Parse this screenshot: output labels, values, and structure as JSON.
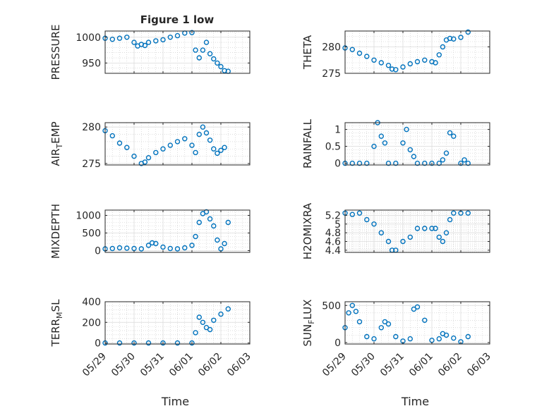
{
  "figure": {
    "title": "Figure 1 low"
  },
  "style": {
    "marker_color": "#0072bd",
    "axis_color": "#262626",
    "grid_color": "#c8c8c8"
  },
  "chart_data": [
    {
      "type": "scatter",
      "ylabel": "PRESSURE",
      "ylabel_sub": "",
      "ylim": [
        930,
        1012
      ],
      "yticks": [
        950,
        1000
      ],
      "x": [
        "05/29 00:00",
        "05/29 06:00",
        "05/29 12:00",
        "05/29 18:00",
        "05/30 00:00",
        "05/30 03:00",
        "05/30 06:00",
        "05/30 09:00",
        "05/30 12:00",
        "05/30 18:00",
        "05/31 00:00",
        "05/31 06:00",
        "05/31 12:00",
        "05/31 18:00",
        "06/01 00:00",
        "06/01 03:00",
        "06/01 06:00",
        "06/01 09:00",
        "06/01 12:00",
        "06/01 15:00",
        "06/01 18:00",
        "06/01 21:00",
        "06/02 00:00",
        "06/02 03:00",
        "06/02 06:00"
      ],
      "y": [
        998,
        996,
        998,
        1000,
        990,
        983,
        986,
        984,
        990,
        993,
        995,
        1000,
        1003,
        1008,
        1009,
        975,
        960,
        975,
        990,
        968,
        958,
        950,
        943,
        935,
        934
      ]
    },
    {
      "type": "scatter",
      "ylabel": "THETA",
      "ylabel_sub": "",
      "ylim": [
        275,
        283
      ],
      "yticks": [
        275,
        280
      ],
      "x": [
        "05/29 00:00",
        "05/29 06:00",
        "05/29 12:00",
        "05/29 18:00",
        "05/30 00:00",
        "05/30 06:00",
        "05/30 12:00",
        "05/30 15:00",
        "05/30 18:00",
        "05/31 00:00",
        "05/31 06:00",
        "05/31 12:00",
        "05/31 18:00",
        "06/01 00:00",
        "06/01 03:00",
        "06/01 06:00",
        "06/01 09:00",
        "06/01 12:00",
        "06/01 15:00",
        "06/01 18:00",
        "06/02 00:00",
        "06/02 06:00"
      ],
      "y": [
        279.8,
        279.5,
        278.8,
        278.2,
        277.5,
        277.0,
        276.5,
        275.8,
        275.7,
        276.2,
        276.8,
        277.2,
        277.5,
        277.2,
        277.0,
        278.5,
        280.0,
        281.3,
        281.6,
        281.5,
        281.8,
        282.8
      ]
    },
    {
      "type": "scatter",
      "ylabel": "AIR",
      "ylabel_sub": "T",
      "ylabel_rest": "EMP",
      "ylim": [
        274.8,
        280.6
      ],
      "yticks": [
        275,
        280
      ],
      "x": [
        "05/29 00:00",
        "05/29 06:00",
        "05/29 12:00",
        "05/29 18:00",
        "05/30 00:00",
        "05/30 06:00",
        "05/30 09:00",
        "05/30 12:00",
        "05/30 18:00",
        "05/31 00:00",
        "05/31 06:00",
        "05/31 12:00",
        "05/31 18:00",
        "06/01 00:00",
        "06/01 03:00",
        "06/01 06:00",
        "06/01 09:00",
        "06/01 12:00",
        "06/01 15:00",
        "06/01 18:00",
        "06/01 21:00",
        "06/02 00:00",
        "06/02 03:00"
      ],
      "y": [
        279.5,
        278.8,
        277.8,
        277.2,
        276.0,
        275.0,
        275.2,
        275.8,
        276.5,
        277.0,
        277.5,
        278.0,
        278.4,
        277.5,
        276.5,
        279.0,
        280.0,
        279.2,
        278.2,
        277.0,
        276.4,
        276.8,
        277.2
      ]
    },
    {
      "type": "scatter",
      "ylabel": "RAINFALL",
      "ylabel_sub": "",
      "ylim": [
        -0.05,
        1.2
      ],
      "yticks": [
        0,
        0.5,
        1
      ],
      "x": [
        "05/29 00:00",
        "05/29 06:00",
        "05/29 12:00",
        "05/29 18:00",
        "05/30 00:00",
        "05/30 03:00",
        "05/30 06:00",
        "05/30 09:00",
        "05/30 12:00",
        "05/30 18:00",
        "05/31 00:00",
        "05/31 03:00",
        "05/31 06:00",
        "05/31 09:00",
        "05/31 12:00",
        "05/31 18:00",
        "06/01 00:00",
        "06/01 06:00",
        "06/01 09:00",
        "06/01 12:00",
        "06/01 15:00",
        "06/01 18:00",
        "06/02 00:00",
        "06/02 03:00",
        "06/02 06:00"
      ],
      "y": [
        0,
        0,
        0,
        0,
        0.5,
        1.2,
        0.8,
        0.6,
        0,
        0,
        0.6,
        1.0,
        0.4,
        0.2,
        0,
        0,
        0,
        0,
        0.1,
        0.3,
        0.9,
        0.8,
        0,
        0.1,
        0
      ]
    },
    {
      "type": "scatter",
      "ylabel": "MIXDEPTH",
      "ylabel_sub": "",
      "ylim": [
        -50,
        1150
      ],
      "yticks": [
        0,
        500,
        1000
      ],
      "x": [
        "05/29 00:00",
        "05/29 06:00",
        "05/29 12:00",
        "05/29 18:00",
        "05/30 00:00",
        "05/30 06:00",
        "05/30 12:00",
        "05/30 15:00",
        "05/30 18:00",
        "05/31 00:00",
        "05/31 06:00",
        "05/31 12:00",
        "05/31 18:00",
        "06/01 00:00",
        "06/01 03:00",
        "06/01 06:00",
        "06/01 09:00",
        "06/01 12:00",
        "06/01 15:00",
        "06/01 18:00",
        "06/01 21:00",
        "06/02 00:00",
        "06/02 03:00",
        "06/02 06:00"
      ],
      "y": [
        50,
        60,
        80,
        70,
        60,
        50,
        150,
        220,
        200,
        100,
        60,
        50,
        80,
        150,
        400,
        800,
        1050,
        1100,
        900,
        700,
        300,
        50,
        200,
        800
      ]
    },
    {
      "type": "scatter",
      "ylabel": "H2OMIXRA",
      "ylabel_sub": "",
      "ylim": [
        4.35,
        5.32
      ],
      "yticks": [
        4.4,
        4.6,
        4.8,
        5,
        5.2
      ],
      "x": [
        "05/29 00:00",
        "05/29 06:00",
        "05/29 12:00",
        "05/29 18:00",
        "05/30 00:00",
        "05/30 06:00",
        "05/30 12:00",
        "05/30 15:00",
        "05/30 18:00",
        "05/31 00:00",
        "05/31 06:00",
        "05/31 12:00",
        "05/31 18:00",
        "06/01 00:00",
        "06/01 03:00",
        "06/01 06:00",
        "06/01 09:00",
        "06/01 12:00",
        "06/01 15:00",
        "06/01 18:00",
        "06/02 00:00",
        "06/02 06:00"
      ],
      "y": [
        5.25,
        5.22,
        5.25,
        5.1,
        5.0,
        4.8,
        4.6,
        4.4,
        4.4,
        4.6,
        4.7,
        4.9,
        4.9,
        4.9,
        4.9,
        4.7,
        4.6,
        4.8,
        5.1,
        5.25,
        5.25,
        5.25
      ]
    },
    {
      "type": "scatter",
      "ylabel": "TERR",
      "ylabel_sub": "M",
      "ylabel_rest": "SL",
      "ylim": [
        -10,
        400
      ],
      "yticks": [
        0,
        200,
        400
      ],
      "x": [
        "05/29 00:00",
        "05/29 12:00",
        "05/30 00:00",
        "05/30 12:00",
        "05/31 00:00",
        "05/31 12:00",
        "06/01 00:00",
        "06/01 03:00",
        "06/01 06:00",
        "06/01 09:00",
        "06/01 12:00",
        "06/01 15:00",
        "06/01 18:00",
        "06/02 00:00",
        "06/02 06:00"
      ],
      "y": [
        0,
        0,
        0,
        0,
        0,
        0,
        0,
        100,
        250,
        200,
        150,
        130,
        220,
        280,
        330
      ]
    },
    {
      "type": "scatter",
      "ylabel": "SUN",
      "ylabel_sub": "F",
      "ylabel_rest": "LUX",
      "ylim": [
        -20,
        550
      ],
      "yticks": [
        0,
        500
      ],
      "x": [
        "05/29 00:00",
        "05/29 03:00",
        "05/29 06:00",
        "05/29 09:00",
        "05/29 12:00",
        "05/29 18:00",
        "05/30 00:00",
        "05/30 06:00",
        "05/30 09:00",
        "05/30 12:00",
        "05/30 18:00",
        "05/31 00:00",
        "05/31 06:00",
        "05/31 09:00",
        "05/31 12:00",
        "05/31 18:00",
        "06/01 00:00",
        "06/01 06:00",
        "06/01 09:00",
        "06/01 12:00",
        "06/01 18:00",
        "06/02 00:00",
        "06/02 06:00"
      ],
      "y": [
        200,
        400,
        500,
        420,
        280,
        80,
        50,
        200,
        280,
        250,
        80,
        20,
        50,
        450,
        480,
        300,
        30,
        50,
        120,
        100,
        60,
        10,
        80
      ]
    }
  ],
  "x_axis": {
    "xlim": [
      "05/29 00:00",
      "06/03 00:00"
    ],
    "tick_labels": [
      "05/29",
      "05/30",
      "05/31",
      "06/01",
      "06/02",
      "06/03"
    ],
    "label": "Time"
  }
}
